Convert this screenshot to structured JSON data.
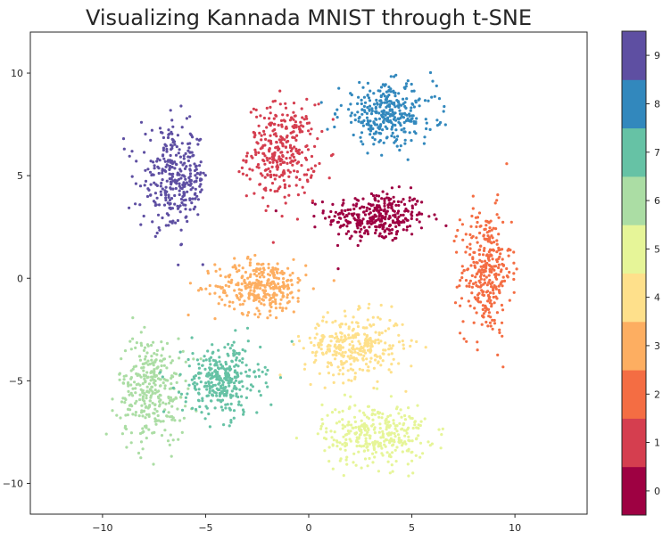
{
  "chart_data": {
    "type": "scatter",
    "title": "Visualizing Kannada MNIST through t-SNE",
    "xlabel": "",
    "ylabel": "",
    "xlim": [
      -13.5,
      13.5
    ],
    "ylim": [
      -11.5,
      12
    ],
    "x_ticks": [
      -10,
      -5,
      0,
      5,
      10
    ],
    "y_ticks": [
      -10,
      -5,
      0,
      5,
      10
    ],
    "grid": false,
    "colorbar": {
      "labels": [
        "0",
        "1",
        "2",
        "3",
        "4",
        "5",
        "6",
        "7",
        "8",
        "9"
      ],
      "colors": [
        "#9e0142",
        "#d53e4f",
        "#f46d43",
        "#fdae61",
        "#fee08b",
        "#e6f598",
        "#abdda4",
        "#66c2a5",
        "#3288bd",
        "#5e4fa2"
      ]
    },
    "clusters": [
      {
        "label": "0",
        "center": [
          3.3,
          3.0
        ],
        "spread": [
          2.2,
          1.1
        ]
      },
      {
        "label": "1",
        "center": [
          -1.3,
          6.2
        ],
        "spread": [
          1.5,
          2.1
        ]
      },
      {
        "label": "2",
        "center": [
          8.6,
          0.3
        ],
        "spread": [
          1.1,
          2.8
        ]
      },
      {
        "label": "3",
        "center": [
          -2.3,
          -0.4
        ],
        "spread": [
          2.0,
          1.2
        ]
      },
      {
        "label": "4",
        "center": [
          2.2,
          -3.3
        ],
        "spread": [
          2.2,
          1.4
        ]
      },
      {
        "label": "5",
        "center": [
          3.2,
          -7.6
        ],
        "spread": [
          2.3,
          1.4
        ]
      },
      {
        "label": "6",
        "center": [
          -7.6,
          -5.4
        ],
        "spread": [
          1.5,
          2.3
        ]
      },
      {
        "label": "7",
        "center": [
          -4.2,
          -5.0
        ],
        "spread": [
          1.7,
          1.6
        ]
      },
      {
        "label": "8",
        "center": [
          3.8,
          8.0
        ],
        "spread": [
          2.1,
          1.3
        ]
      },
      {
        "label": "9",
        "center": [
          -6.5,
          4.8
        ],
        "spread": [
          1.5,
          2.2
        ]
      }
    ]
  }
}
